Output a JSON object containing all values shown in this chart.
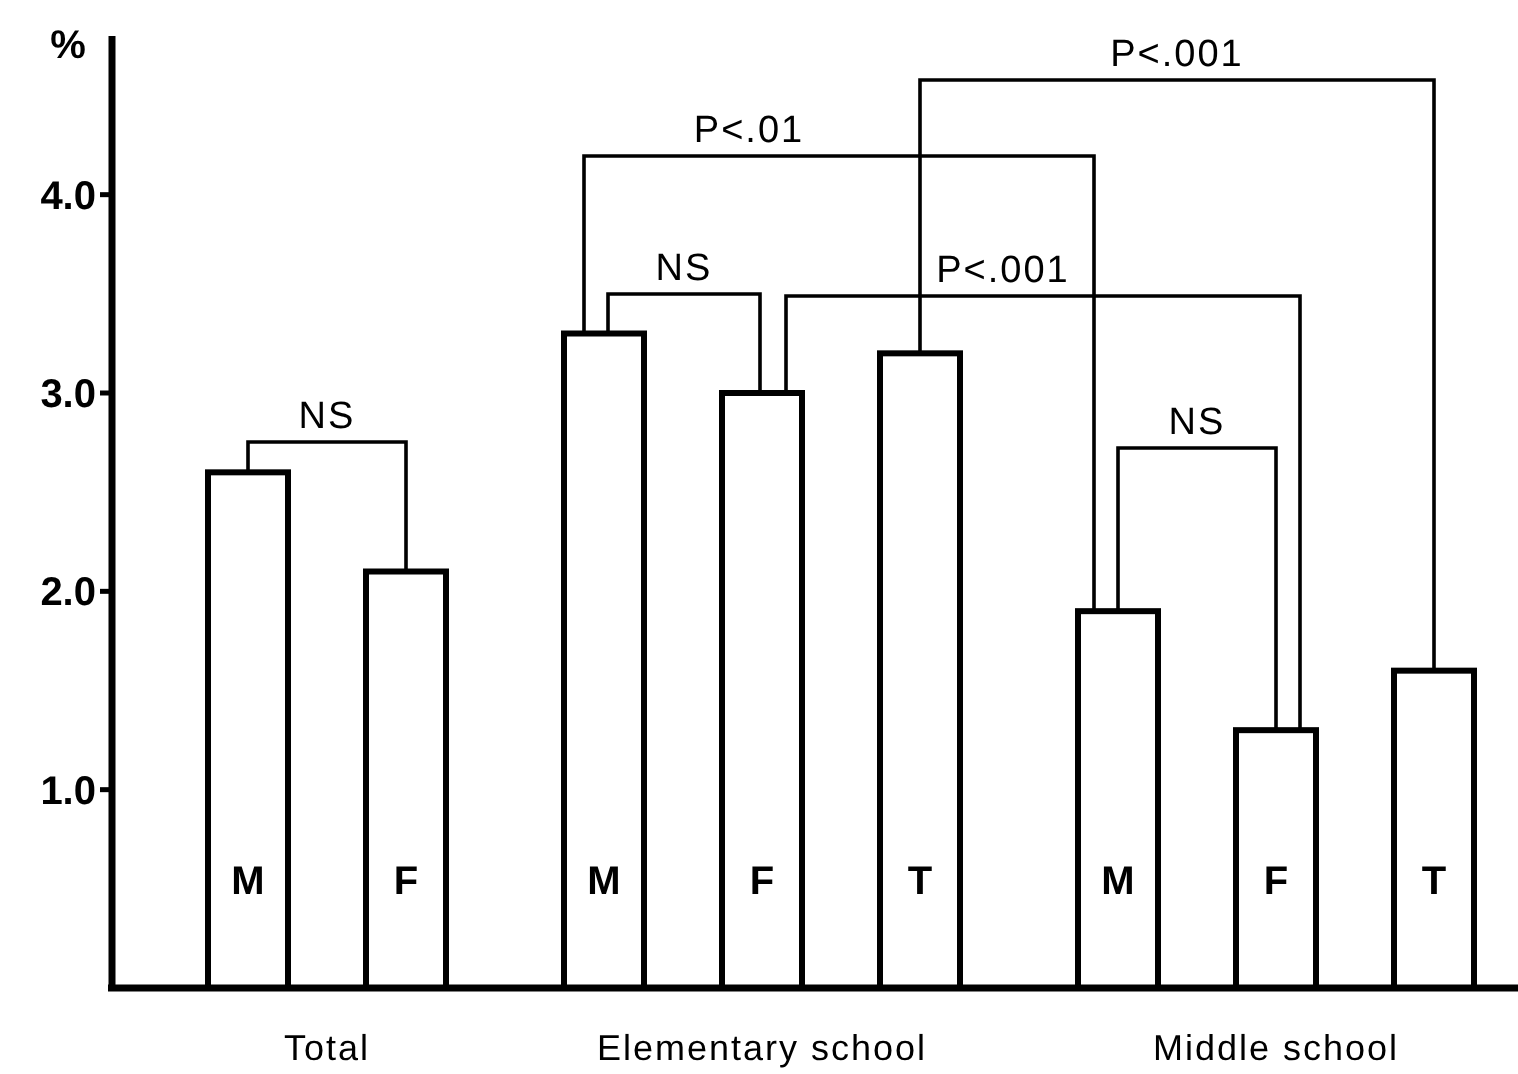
{
  "chart_data": {
    "type": "bar",
    "ylabel": "%",
    "categories": [
      "M",
      "F",
      "M",
      "F",
      "T",
      "M",
      "F",
      "T"
    ],
    "values": [
      2.6,
      2.1,
      3.3,
      3.0,
      3.2,
      1.9,
      1.3,
      1.6
    ],
    "color": "#ffffff",
    "ylim": [
      0,
      4.8
    ],
    "yticks": [
      {
        "value": 1,
        "label": "1.0"
      },
      {
        "value": 2,
        "label": "2.0"
      },
      {
        "value": 3,
        "label": "3.0"
      },
      {
        "value": 4,
        "label": "4.0"
      }
    ],
    "grid": false,
    "annotations": [
      "Total",
      "Elementary school",
      "Middle school",
      "NS",
      "P<.01",
      "NS",
      "P<.001",
      "P<.001",
      "NS"
    ]
  }
}
